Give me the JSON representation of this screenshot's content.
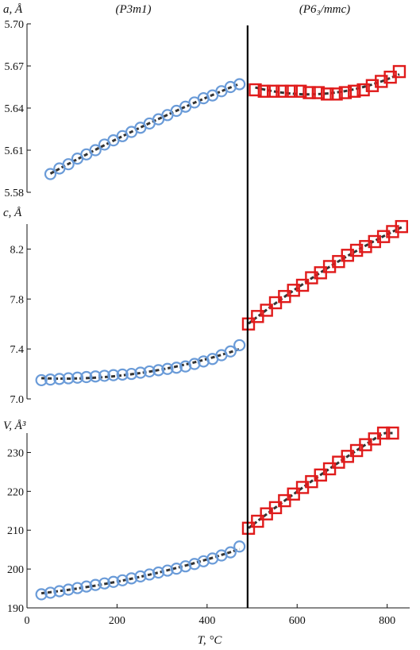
{
  "figure": {
    "phase_labels": [
      "(P3m1)",
      "(P6₃/mmc)"
    ],
    "xlabel": "T, °C",
    "x_ticks": [
      0,
      200,
      400,
      600,
      800
    ],
    "transition_T": 490,
    "colors": {
      "low_phase": "#6a9bd8",
      "high_phase": "#e01b1b",
      "fit": "#333333",
      "divider": "#000000"
    }
  },
  "chart_data": [
    {
      "type": "scatter",
      "ylabel": "a, Å",
      "ylim": [
        5.58,
        5.7
      ],
      "yticks": [
        "5.58",
        "5.61",
        "5.64",
        "5.67",
        "5.70"
      ],
      "xlim": [
        0,
        850
      ],
      "series": [
        {
          "marker": "circle",
          "x": [
            52,
            72,
            92,
            112,
            132,
            152,
            172,
            192,
            212,
            232,
            252,
            272,
            292,
            312,
            332,
            352,
            372,
            392,
            412,
            432,
            452,
            472
          ],
          "y": [
            5.593,
            5.597,
            5.6,
            5.604,
            5.607,
            5.61,
            5.614,
            5.617,
            5.62,
            5.623,
            5.626,
            5.629,
            5.632,
            5.635,
            5.638,
            5.641,
            5.644,
            5.647,
            5.649,
            5.652,
            5.655,
            5.657
          ]
        },
        {
          "marker": "square",
          "x": [
            507,
            527,
            547,
            567,
            587,
            607,
            627,
            647,
            667,
            687,
            707,
            727,
            747,
            767,
            787,
            807,
            827
          ],
          "y": [
            5.653,
            5.652,
            5.652,
            5.652,
            5.652,
            5.652,
            5.651,
            5.651,
            5.65,
            5.65,
            5.651,
            5.652,
            5.653,
            5.656,
            5.659,
            5.662,
            5.666
          ]
        }
      ]
    },
    {
      "type": "scatter",
      "ylabel": "c, Å",
      "ylim": [
        7.0,
        8.4
      ],
      "yticks": [
        "7.0",
        "7.4",
        "7.8",
        "8.2"
      ],
      "xlim": [
        0,
        850
      ],
      "series": [
        {
          "marker": "circle",
          "x": [
            32,
            52,
            72,
            92,
            112,
            132,
            152,
            172,
            192,
            212,
            232,
            252,
            272,
            292,
            312,
            332,
            352,
            372,
            392,
            412,
            432,
            452,
            472
          ],
          "y": [
            7.15,
            7.155,
            7.16,
            7.165,
            7.17,
            7.175,
            7.18,
            7.185,
            7.19,
            7.195,
            7.2,
            7.21,
            7.22,
            7.23,
            7.24,
            7.25,
            7.26,
            7.28,
            7.3,
            7.32,
            7.35,
            7.38,
            7.43
          ]
        },
        {
          "marker": "square",
          "x": [
            492,
            512,
            532,
            552,
            572,
            592,
            612,
            632,
            652,
            672,
            692,
            712,
            732,
            752,
            772,
            792,
            812,
            832
          ],
          "y": [
            7.6,
            7.66,
            7.71,
            7.77,
            7.82,
            7.87,
            7.91,
            7.97,
            8.01,
            8.06,
            8.1,
            8.15,
            8.19,
            8.22,
            8.26,
            8.3,
            8.34,
            8.38
          ]
        }
      ]
    },
    {
      "type": "scatter",
      "ylabel": "V, Å³",
      "ylim": [
        190,
        235
      ],
      "yticks": [
        "190",
        "200",
        "210",
        "220",
        "230"
      ],
      "xlim": [
        0,
        850
      ],
      "series": [
        {
          "marker": "circle",
          "x": [
            32,
            52,
            72,
            92,
            112,
            132,
            152,
            172,
            192,
            212,
            232,
            252,
            272,
            292,
            312,
            332,
            352,
            372,
            392,
            412,
            432,
            452,
            472
          ],
          "y": [
            193.5,
            193.9,
            194.3,
            194.7,
            195.1,
            195.5,
            195.9,
            196.3,
            196.7,
            197.1,
            197.6,
            198.1,
            198.6,
            199.1,
            199.6,
            200.1,
            200.7,
            201.3,
            202.0,
            202.7,
            203.5,
            204.3,
            205.8
          ]
        },
        {
          "marker": "square",
          "x": [
            492,
            512,
            532,
            552,
            572,
            592,
            612,
            632,
            652,
            672,
            692,
            712,
            732,
            752,
            772,
            792,
            812
          ],
          "y": [
            210.5,
            212.3,
            214.2,
            215.8,
            217.6,
            219.3,
            221.0,
            222.5,
            224.2,
            225.8,
            227.5,
            229.0,
            230.5,
            232.0,
            233.5,
            235.0,
            236.5
          ]
        }
      ]
    }
  ]
}
